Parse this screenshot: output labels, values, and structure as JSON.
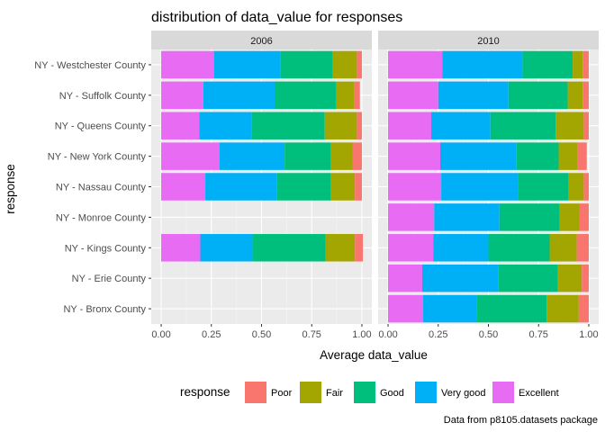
{
  "chart_data": {
    "type": "bar",
    "orientation": "horizontal",
    "stacked": true,
    "title": "distribution of data_value for responses",
    "xlabel": "Average data_value",
    "ylabel": "response",
    "xlim": [
      0,
      1
    ],
    "x_ticks": [
      "0.00",
      "0.25",
      "0.50",
      "0.75",
      "1.00"
    ],
    "caption": "Data from p8105.datasets package",
    "grid": true,
    "legend_position": "bottom",
    "legend_title": "response",
    "categories": [
      "NY - Westchester County",
      "NY - Suffolk County",
      "NY - Queens County",
      "NY - New York County",
      "NY - Nassau County",
      "NY - Monroe County",
      "NY - Kings County",
      "NY - Erie County",
      "NY - Bronx County"
    ],
    "series_order": [
      "Excellent",
      "Very good",
      "Good",
      "Fair",
      "Poor"
    ],
    "legend_order": [
      "Poor",
      "Fair",
      "Good",
      "Very good",
      "Excellent"
    ],
    "colors": {
      "Poor": "#F8766D",
      "Fair": "#A3A500",
      "Good": "#00BF7D",
      "Very good": "#00B0F6",
      "Excellent": "#E76BF3"
    },
    "panels": [
      {
        "facet": "2006",
        "values": {
          "NY - Westchester County": [
            0.263,
            0.33,
            0.262,
            0.12,
            0.025
          ],
          "NY - Suffolk County": [
            0.21,
            0.355,
            0.305,
            0.09,
            0.03
          ],
          "NY - Queens County": [
            0.19,
            0.26,
            0.365,
            0.16,
            0.025
          ],
          "NY - New York County": [
            0.29,
            0.325,
            0.23,
            0.11,
            0.045
          ],
          "NY - Nassau County": [
            0.22,
            0.355,
            0.27,
            0.12,
            0.035
          ],
          "NY - Monroe County": null,
          "NY - Kings County": [
            0.195,
            0.26,
            0.365,
            0.145,
            0.04
          ],
          "NY - Erie County": null,
          "NY - Bronx County": null
        }
      },
      {
        "facet": "2010",
        "values": {
          "NY - Westchester County": [
            0.27,
            0.4,
            0.25,
            0.05,
            0.03
          ],
          "NY - Suffolk County": [
            0.25,
            0.35,
            0.295,
            0.075,
            0.03
          ],
          "NY - Queens County": [
            0.215,
            0.295,
            0.325,
            0.14,
            0.025
          ],
          "NY - New York County": [
            0.26,
            0.38,
            0.21,
            0.095,
            0.045
          ],
          "NY - Nassau County": [
            0.265,
            0.385,
            0.25,
            0.075,
            0.025
          ],
          "NY - Monroe County": [
            0.23,
            0.325,
            0.3,
            0.1,
            0.045
          ],
          "NY - Kings County": [
            0.225,
            0.275,
            0.305,
            0.135,
            0.06
          ],
          "NY - Erie County": [
            0.17,
            0.38,
            0.295,
            0.12,
            0.035
          ],
          "NY - Bronx County": [
            0.175,
            0.265,
            0.35,
            0.16,
            0.05
          ]
        }
      }
    ]
  }
}
